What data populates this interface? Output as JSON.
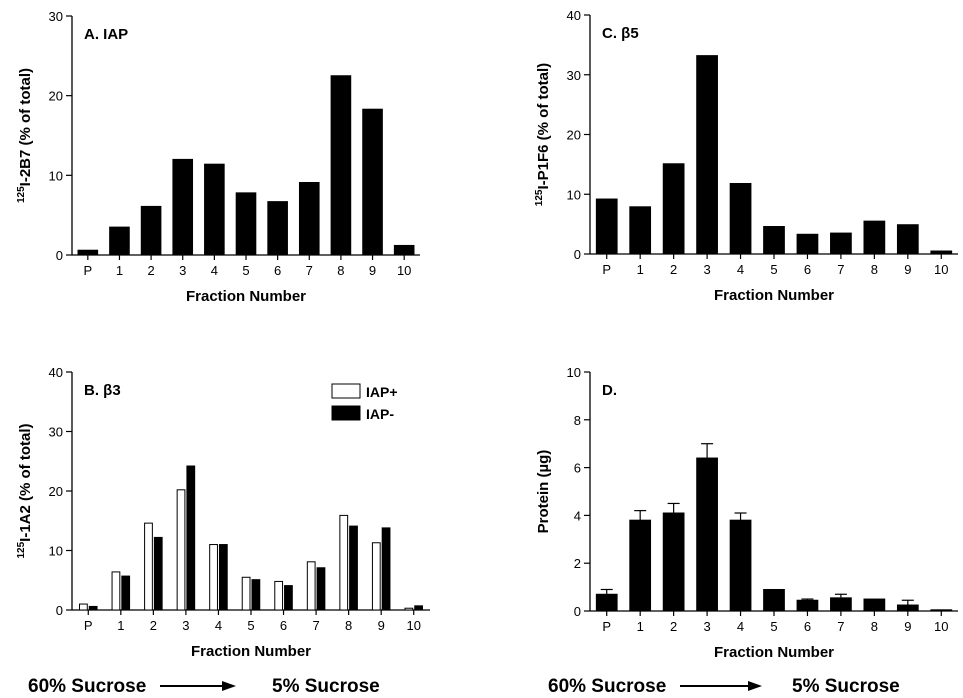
{
  "chart_data": [
    {
      "type": "bar",
      "title": "A. IAP",
      "xlabel": "Fraction Number",
      "ylabel": "125I-2B7 (% of total)",
      "ylabel_sup": "125",
      "ylabel_main": "I-2B7 (% of total)",
      "categories": [
        "P",
        "1",
        "2",
        "3",
        "4",
        "5",
        "6",
        "7",
        "8",
        "9",
        "10"
      ],
      "ylim": [
        0,
        30
      ],
      "yticks": [
        0,
        10,
        20,
        30
      ],
      "series": [
        {
          "color": "#000000",
          "values": [
            0.6,
            3.5,
            6.1,
            12.0,
            11.4,
            7.8,
            6.7,
            9.1,
            22.5,
            18.3,
            1.2
          ]
        }
      ]
    },
    {
      "type": "bar",
      "title": "C. β5",
      "xlabel": "Fraction Number",
      "ylabel": "125I-P1F6 (% of total)",
      "ylabel_sup": "125",
      "ylabel_main": "I-P1F6 (% of total)",
      "categories": [
        "P",
        "1",
        "2",
        "3",
        "4",
        "5",
        "6",
        "7",
        "8",
        "9",
        "10"
      ],
      "ylim": [
        0,
        40
      ],
      "yticks": [
        0,
        10,
        20,
        30,
        40
      ],
      "series": [
        {
          "color": "#000000",
          "values": [
            9.2,
            7.9,
            15.1,
            33.2,
            11.8,
            4.6,
            3.3,
            3.5,
            5.5,
            4.9,
            0.5
          ]
        }
      ]
    },
    {
      "type": "bar",
      "title": "B. β3",
      "xlabel": "Fraction Number",
      "ylabel": "125I-1A2 (% of total)",
      "ylabel_sup": "125",
      "ylabel_main": "I-1A2 (% of total)",
      "categories": [
        "P",
        "1",
        "2",
        "3",
        "4",
        "5",
        "6",
        "7",
        "8",
        "9",
        "10"
      ],
      "ylim": [
        0,
        40
      ],
      "yticks": [
        0,
        10,
        20,
        30,
        40
      ],
      "legend_position": "top-right",
      "series": [
        {
          "name": "IAP+",
          "color": "#ffffff",
          "values": [
            1.0,
            6.4,
            14.6,
            20.2,
            11.0,
            5.5,
            4.8,
            8.1,
            15.9,
            11.3,
            0.3
          ]
        },
        {
          "name": "IAP-",
          "color": "#000000",
          "values": [
            0.6,
            5.7,
            12.2,
            24.2,
            11.0,
            5.1,
            4.1,
            7.1,
            14.1,
            13.8,
            0.7
          ]
        }
      ]
    },
    {
      "type": "bar",
      "title": "D.",
      "xlabel": "Fraction Number",
      "ylabel": "Protein (µg)",
      "ylabel_sup": "",
      "ylabel_main": "Protein (µg)",
      "categories": [
        "P",
        "1",
        "2",
        "3",
        "4",
        "5",
        "6",
        "7",
        "8",
        "9",
        "10"
      ],
      "ylim": [
        0,
        10
      ],
      "yticks": [
        0,
        2,
        4,
        6,
        8,
        10
      ],
      "series": [
        {
          "color": "#000000",
          "values": [
            0.7,
            3.8,
            4.1,
            6.4,
            3.8,
            0.9,
            0.45,
            0.55,
            0.5,
            0.25,
            0.05
          ],
          "error": [
            0.2,
            0.4,
            0.4,
            0.6,
            0.3,
            0.0,
            0.05,
            0.15,
            0.0,
            0.2,
            0.0
          ]
        }
      ]
    }
  ],
  "footer": {
    "left_start": "60% Sucrose",
    "left_end": "5% Sucrose",
    "right_start": "60% Sucrose",
    "right_end": "5% Sucrose"
  }
}
